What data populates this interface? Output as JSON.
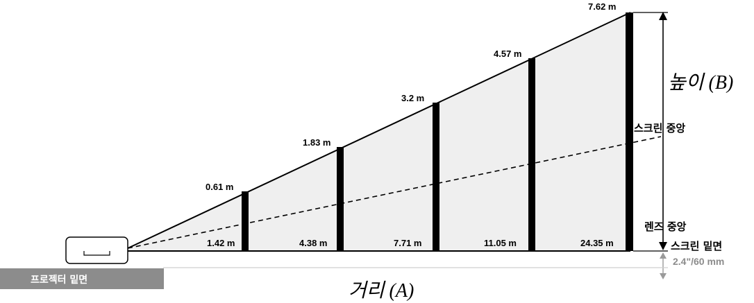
{
  "diagram": {
    "screens": [
      {
        "height_label": "0.61 m",
        "distance_label": "1.42 m"
      },
      {
        "height_label": "1.83 m",
        "distance_label": "4.38 m"
      },
      {
        "height_label": "3.2 m",
        "distance_label": "7.71 m"
      },
      {
        "height_label": "4.57 m",
        "distance_label": "11.05 m"
      },
      {
        "height_label": "7.62 m",
        "distance_label": "24.35 m"
      }
    ],
    "height_title": "높이 (B)",
    "distance_title": "거리 (A)",
    "screen_center_label": "스크린 중앙",
    "lens_center_label": "렌즈 중앙",
    "screen_bottom_label": "스크린 밑면",
    "offset_label": "2.4\"/60 mm",
    "projector_floor_label": "프로젝터 밑면"
  }
}
